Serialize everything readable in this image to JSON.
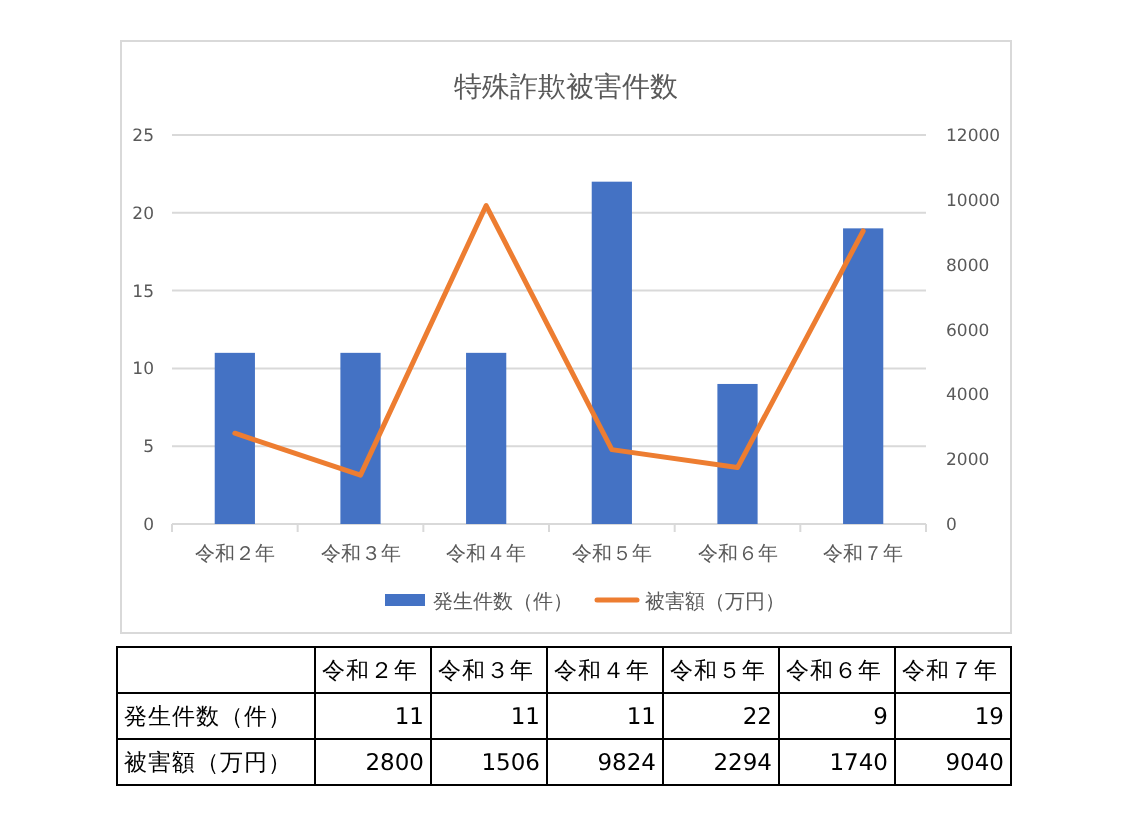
{
  "chart_data": [
    {
      "type": "bar",
      "title": "特殊詐欺被害件数",
      "categories": [
        "令和２年",
        "令和３年",
        "令和４年",
        "令和５年",
        "令和６年",
        "令和７年"
      ],
      "series": [
        {
          "name": "発生件数（件）",
          "type": "bar",
          "color": "#4472c4",
          "values": [
            11,
            11,
            11,
            22,
            9,
            19
          ]
        },
        {
          "name": "被害額（万円）",
          "type": "line",
          "axis": "y2",
          "color": "#ed7d31",
          "values": [
            2800,
            1506,
            9824,
            2294,
            1740,
            9040
          ]
        }
      ],
      "ylim": [
        0,
        25
      ],
      "yticks": [
        0,
        5,
        10,
        15,
        20,
        25
      ],
      "y2lim": [
        0,
        12000
      ],
      "y2ticks": [
        0,
        2000,
        4000,
        6000,
        8000,
        10000,
        12000
      ],
      "grid": "y",
      "legend": "bottom"
    },
    {
      "type": "other",
      "categories": [
        "令和２年",
        "令和３年",
        "令和４年",
        "令和５年",
        "令和６年",
        "令和７年"
      ],
      "series": [
        {
          "name": "発生件数（件）",
          "values": [
            11,
            11,
            11,
            22,
            9,
            19
          ]
        },
        {
          "name": "被害額（万円）",
          "values": [
            2800,
            1506,
            9824,
            2294,
            1740,
            9040
          ]
        }
      ],
      "data_labels": true
    }
  ]
}
